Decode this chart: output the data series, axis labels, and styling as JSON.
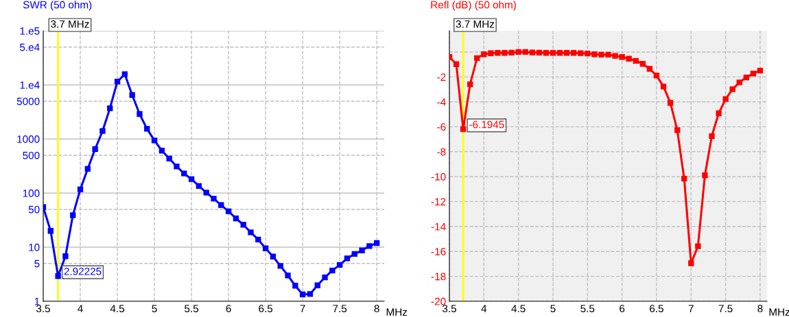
{
  "chart_data": [
    {
      "type": "line",
      "title": "SWR (50 ohm)",
      "xlabel": "MHz",
      "log": "y",
      "grid": true,
      "marker": "square",
      "line_style": "solid",
      "x": [
        3.5,
        3.6,
        3.7,
        3.8,
        3.9,
        4.0,
        4.1,
        4.2,
        4.3,
        4.4,
        4.5,
        4.6,
        4.7,
        4.8,
        4.9,
        5.0,
        5.1,
        5.2,
        5.3,
        5.4,
        5.5,
        5.6,
        5.7,
        5.8,
        5.9,
        6.0,
        6.1,
        6.2,
        6.3,
        6.4,
        6.5,
        6.6,
        6.7,
        6.8,
        6.9,
        7.0,
        7.1,
        7.2,
        7.3,
        7.4,
        7.5,
        7.6,
        7.7,
        7.8,
        7.9,
        8.0
      ],
      "series": [
        {
          "color": "#0000ff",
          "values": [
            55,
            20,
            2.92225,
            6.8,
            39,
            117,
            280,
            650,
            1400,
            3700,
            11500,
            15800,
            6500,
            2900,
            1540,
            940,
            610,
            435,
            310,
            230,
            181,
            135,
            102,
            79,
            60,
            46,
            34,
            26,
            18.8,
            13.8,
            9.5,
            6.7,
            4.5,
            3.0,
            1.94,
            1.34,
            1.36,
            1.97,
            2.77,
            3.7,
            4.7,
            6.2,
            7.5,
            8.7,
            10.5,
            11.9
          ]
        }
      ],
      "xlim": [
        3.5,
        8.1
      ],
      "xticks": [
        3.5,
        4,
        4.5,
        5,
        5.5,
        6,
        6.5,
        7,
        7.5,
        8
      ],
      "ylim": [
        1,
        100000
      ],
      "yticks": [
        1,
        5,
        10,
        50,
        100,
        500,
        1000,
        5000,
        {
          "value": 10000,
          "label": "1.e4"
        },
        {
          "value": 50000,
          "label": "5.e4"
        },
        {
          "value": 100000,
          "label": "1.e5"
        }
      ],
      "ref_lines": [
        {
          "axis": "x",
          "value": 3.7,
          "label": "3.7 MHz",
          "color": "#ffff00"
        }
      ],
      "annotations": [
        {
          "text": "2.92225",
          "x": 3.7,
          "y": 2.92225
        }
      ]
    },
    {
      "type": "line",
      "title": "Refl (dB) (50 ohm)",
      "xlabel": "MHz",
      "grid": true,
      "marker": "square",
      "line_style": "solid",
      "x": [
        3.5,
        3.6,
        3.7,
        3.8,
        3.9,
        4.0,
        4.1,
        4.2,
        4.3,
        4.4,
        4.5,
        4.6,
        4.7,
        4.8,
        4.9,
        5.0,
        5.1,
        5.2,
        5.3,
        5.4,
        5.5,
        5.6,
        5.7,
        5.8,
        5.9,
        6.0,
        6.1,
        6.2,
        6.3,
        6.4,
        6.5,
        6.6,
        6.7,
        6.8,
        6.9,
        7.0,
        7.1,
        7.2,
        7.3,
        7.4,
        7.5,
        7.6,
        7.7,
        7.8,
        7.9,
        8.0
      ],
      "series": [
        {
          "color": "#ff0000",
          "values": [
            -0.4,
            -0.98,
            -6.1945,
            -2.59,
            -0.49,
            -0.18,
            -0.1,
            -0.07,
            -0.07,
            -0.05,
            0.0,
            0.0,
            -0.04,
            -0.05,
            -0.07,
            -0.07,
            -0.07,
            -0.07,
            -0.07,
            -0.09,
            -0.12,
            -0.18,
            -0.22,
            -0.22,
            -0.31,
            -0.4,
            -0.54,
            -0.71,
            -0.95,
            -1.35,
            -1.89,
            -2.77,
            -4.08,
            -6.27,
            -10.16,
            -16.95,
            -15.58,
            -9.89,
            -6.75,
            -4.92,
            -3.77,
            -2.99,
            -2.44,
            -2.04,
            -1.73,
            -1.49
          ]
        }
      ],
      "xlim": [
        3.5,
        8.1
      ],
      "xticks": [
        3.5,
        4,
        4.5,
        5,
        5.5,
        6,
        6.5,
        7,
        7.5,
        8
      ],
      "ylim": [
        -20,
        1.7
      ],
      "yticks": [
        -20,
        -18,
        -16,
        -14,
        -12,
        -10,
        -8,
        -6,
        -4,
        -2,
        {
          "value": 0,
          "label": null
        }
      ],
      "ref_lines": [
        {
          "axis": "x",
          "value": 3.7,
          "label": "3.7 MHz",
          "color": "#ffff00"
        }
      ],
      "annotations": [
        {
          "text": "-6.1945",
          "x": 3.7,
          "y": -6.1945
        }
      ]
    }
  ]
}
